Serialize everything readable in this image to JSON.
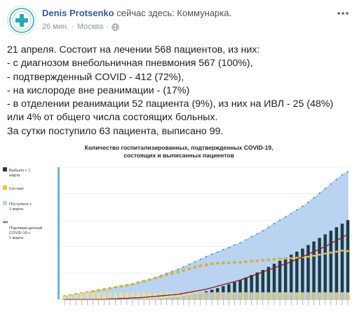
{
  "post": {
    "author": "Denis Protsenko",
    "status": "сейчас здесь: Коммунарка.",
    "time": "26 мин.",
    "location": "Москва",
    "lines": [
      "21 апреля. Состоит на лечении 568 пациентов, из них:",
      "- с диагнозом внебольничная пневмония 567 (100%),",
      "- подтвержденный COVID - 412 (72%),",
      "- на кислороде вне реанимации - (17%)",
      "- в отделении реанимации 52 пациента (9%), из них на ИВЛ - 25 (48%)",
      "или 4% от общего числа состоящих больных.",
      "За сутки поступило 63 пациента, выписано 99."
    ]
  },
  "icons": {
    "avatar": "medical-cross-logo-icon",
    "privacy": "globe-icon",
    "menu": "more-icon"
  },
  "colors": {
    "link": "#365899",
    "bars_discharged": "#1f3b44",
    "bars_current": "#f2c230",
    "area_admitted": "#b9d3f1",
    "line_confirmed": "#8b1a1a"
  },
  "chart_data": {
    "type": "bar",
    "title": "Количество госпитализированных, подтвержденных COVID-19,",
    "subtitle": "состоящих и выписанных пациентов",
    "legend_placement": "left",
    "grid": true,
    "legend": [
      "Выбыло с 1 марта",
      "Состоит",
      "Поступило с 1 марта",
      "Подтверж-денный COVID-19 с 1 марта"
    ],
    "series": [
      {
        "name": "Выбыло с 1 марта",
        "kind": "bar",
        "values": [
          0,
          0,
          0,
          0,
          0,
          0,
          0,
          0,
          0,
          0,
          0,
          0,
          0,
          0,
          0,
          0,
          1,
          2,
          3,
          4,
          5,
          7,
          9,
          11,
          13,
          16,
          19,
          22,
          26,
          30,
          34,
          38,
          43,
          48,
          53,
          58,
          64,
          70,
          76,
          82,
          88,
          94,
          100,
          107,
          114,
          121,
          128,
          135,
          142,
          149,
          156
        ]
      },
      {
        "name": "Состоит",
        "kind": "bar",
        "values": [
          6,
          8,
          10,
          12,
          14,
          16,
          18,
          20,
          22,
          24,
          26,
          28,
          30,
          33,
          36,
          39,
          42,
          45,
          48,
          51,
          54,
          57,
          60,
          63,
          66,
          68,
          70,
          71,
          72,
          72,
          73,
          73,
          74,
          75,
          76,
          77,
          78,
          79,
          80,
          80,
          81,
          82,
          83,
          84,
          86,
          88,
          90,
          92,
          94,
          96,
          95
        ]
      },
      {
        "name": "Поступило с 1 марта",
        "kind": "area",
        "values": [
          6,
          8,
          10,
          12,
          14,
          16,
          18,
          20,
          22,
          24,
          26,
          28,
          30,
          33,
          36,
          39,
          43,
          47,
          51,
          55,
          59,
          64,
          69,
          74,
          79,
          84,
          89,
          93,
          98,
          102,
          107,
          111,
          117,
          123,
          129,
          135,
          142,
          149,
          156,
          162,
          169,
          176,
          183,
          191,
          200,
          209,
          218,
          227,
          236,
          245,
          251
        ]
      },
      {
        "name": "Подтверж-денный COVID-19 с 1 марта",
        "kind": "line",
        "values": [
          0,
          0,
          0,
          0,
          0,
          0,
          0,
          0,
          1,
          1,
          2,
          2,
          3,
          3,
          4,
          5,
          6,
          7,
          8,
          9,
          10,
          12,
          14,
          16,
          18,
          20,
          23,
          26,
          29,
          32,
          35,
          38,
          42,
          46,
          50,
          54,
          58,
          62,
          66,
          70,
          74,
          79,
          84,
          89,
          94,
          99,
          104,
          110,
          116,
          122,
          128
        ]
      }
    ],
    "ylim": [
      0,
      260
    ]
  }
}
